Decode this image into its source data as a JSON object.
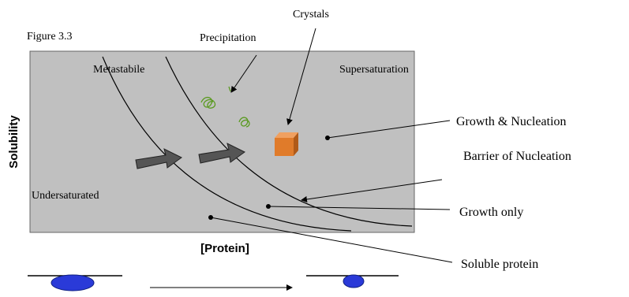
{
  "figure_label": "Figure 3.3",
  "diagram": {
    "axis_y": "Solubility",
    "axis_x": "[Protein]"
  },
  "regions": {
    "metastable": "Metastabile",
    "supersaturation": "Supersaturation",
    "undersaturated": "Undersaturated"
  },
  "callouts": {
    "crystals": "Crystals",
    "precipitation": "Precipitation",
    "growth_nucleation": "Growth & Nucleation",
    "barrier": "Barrier of Nucleation",
    "growth_only": "Growth only",
    "soluble_protein": "Soluble protein"
  }
}
